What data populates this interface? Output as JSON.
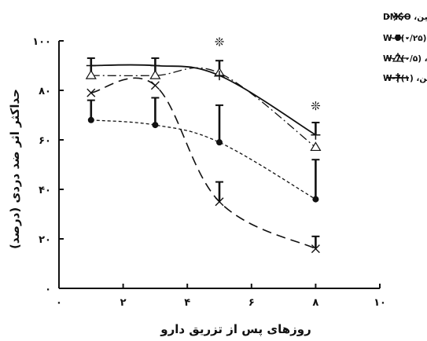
{
  "chart_data": {
    "type": "line",
    "title": "",
    "xlabel": "روزهای پس از تزریق دارو",
    "ylabel": "حداکثر اثر ضد دردی (درصد)",
    "xlim": [
      0,
      10
    ],
    "ylim": [
      0,
      100
    ],
    "x_ticks": [
      0,
      2,
      4,
      6,
      8,
      10
    ],
    "x_tick_labels": [
      "۰",
      "۲",
      "۴",
      "۶",
      "۸",
      "۱۰"
    ],
    "y_ticks": [
      0,
      20,
      40,
      60,
      80,
      100
    ],
    "y_tick_labels": [
      "۰",
      "۲۰",
      "۴۰",
      "۶۰",
      "۸۰",
      "۱۰۰"
    ],
    "x_points": [
      1,
      3,
      5,
      8
    ],
    "grid": false,
    "legend_position": "top-right",
    "series": [
      {
        "name": "مورفین، DMSO",
        "marker": "x",
        "line_style": "long-dash",
        "values": [
          79,
          82,
          35,
          16
        ],
        "error_up": [
          0,
          0,
          0,
          0
        ]
      },
      {
        "name": "مورفین، W-7(۰/۲۵)",
        "marker": "dot",
        "line_style": "short-dash",
        "values": [
          68,
          66,
          59,
          36
        ],
        "error_up": [
          0,
          0,
          0,
          0
        ]
      },
      {
        "name": "مورفین، W-7(۰/۵)",
        "marker": "triangle",
        "line_style": "dash-dot",
        "values": [
          86,
          86,
          87,
          57
        ],
        "error_up": [
          0,
          0,
          0,
          0
        ]
      },
      {
        "name": "مورفین، W-7(۱)",
        "marker": "plus",
        "line_style": "solid",
        "values": [
          90,
          90,
          86,
          62
        ],
        "error_up": [
          0,
          0,
          0,
          0
        ]
      }
    ],
    "error_bars": [
      {
        "x": 1,
        "from": 68,
        "to": 76
      },
      {
        "x": 1,
        "from": 86,
        "to": 93
      },
      {
        "x": 3,
        "from": 66,
        "to": 77
      },
      {
        "x": 3,
        "from": 86,
        "to": 93
      },
      {
        "x": 5,
        "from": 59,
        "to": 74
      },
      {
        "x": 5,
        "from": 35,
        "to": 43
      },
      {
        "x": 5,
        "from": 87,
        "to": 92
      },
      {
        "x": 8,
        "from": 36,
        "to": 52
      },
      {
        "x": 8,
        "from": 16,
        "to": 21
      },
      {
        "x": 8,
        "from": 62,
        "to": 67
      }
    ],
    "annotations": [
      {
        "text": "❊",
        "x": 5,
        "y": 98
      },
      {
        "text": "❊",
        "x": 8,
        "y": 72
      }
    ]
  }
}
